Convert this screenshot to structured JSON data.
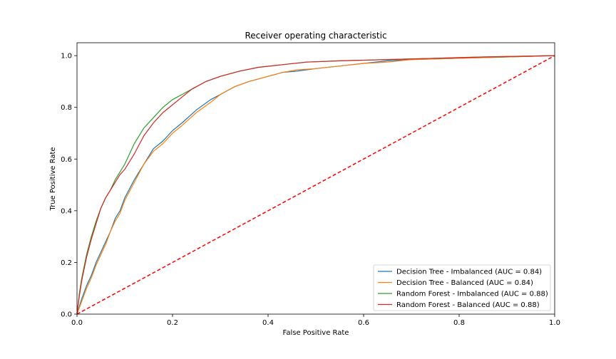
{
  "chart_data": {
    "type": "line",
    "title": "Receiver operating characteristic",
    "xlabel": "False Positive Rate",
    "ylabel": "True Positive Rate",
    "xlim": [
      0,
      1
    ],
    "ylim": [
      0,
      1.05
    ],
    "xticks": [
      "0.0",
      "0.2",
      "0.4",
      "0.6",
      "0.8",
      "1.0"
    ],
    "yticks": [
      "0.0",
      "0.2",
      "0.4",
      "0.6",
      "0.8",
      "1.0"
    ],
    "grid": false,
    "legend_position": "lower-right",
    "series": [
      {
        "name": "Decision Tree - Imbalanced (AUC = 0.84)",
        "color": "#1f77b4",
        "x": [
          0,
          0.01,
          0.02,
          0.03,
          0.04,
          0.05,
          0.06,
          0.07,
          0.08,
          0.09,
          0.1,
          0.12,
          0.14,
          0.16,
          0.18,
          0.2,
          0.22,
          0.25,
          0.28,
          0.3,
          0.33,
          0.36,
          0.4,
          0.43,
          0.46,
          0.5,
          0.55,
          0.6,
          0.65,
          0.7,
          0.8,
          0.9,
          1.0
        ],
        "y": [
          0,
          0.06,
          0.11,
          0.15,
          0.2,
          0.24,
          0.28,
          0.32,
          0.37,
          0.4,
          0.45,
          0.52,
          0.58,
          0.64,
          0.67,
          0.71,
          0.74,
          0.79,
          0.83,
          0.85,
          0.88,
          0.9,
          0.92,
          0.935,
          0.94,
          0.95,
          0.96,
          0.97,
          0.98,
          0.985,
          0.99,
          0.995,
          1.0
        ]
      },
      {
        "name": "Decision Tree - Balanced (AUC = 0.84)",
        "color": "#ff7f0e",
        "x": [
          0,
          0.01,
          0.02,
          0.03,
          0.04,
          0.05,
          0.06,
          0.07,
          0.08,
          0.09,
          0.1,
          0.12,
          0.14,
          0.16,
          0.18,
          0.2,
          0.22,
          0.25,
          0.28,
          0.3,
          0.33,
          0.36,
          0.4,
          0.43,
          0.46,
          0.5,
          0.55,
          0.6,
          0.65,
          0.7,
          0.8,
          0.9,
          1.0
        ],
        "y": [
          0,
          0.05,
          0.1,
          0.14,
          0.19,
          0.23,
          0.27,
          0.32,
          0.36,
          0.39,
          0.44,
          0.51,
          0.58,
          0.63,
          0.66,
          0.7,
          0.73,
          0.78,
          0.82,
          0.85,
          0.88,
          0.9,
          0.92,
          0.935,
          0.945,
          0.95,
          0.96,
          0.97,
          0.975,
          0.985,
          0.99,
          0.995,
          1.0
        ]
      },
      {
        "name": "Random Forest - Imbalanced (AUC = 0.88)",
        "color": "#2ca02c",
        "x": [
          0,
          0.005,
          0.01,
          0.02,
          0.03,
          0.04,
          0.05,
          0.06,
          0.07,
          0.08,
          0.09,
          0.1,
          0.12,
          0.14,
          0.16,
          0.18,
          0.2,
          0.22,
          0.24,
          0.27,
          0.3,
          0.34,
          0.38,
          0.43,
          0.48,
          0.55,
          0.65,
          0.75,
          0.85,
          1.0
        ],
        "y": [
          0,
          0.08,
          0.14,
          0.23,
          0.3,
          0.36,
          0.41,
          0.45,
          0.48,
          0.52,
          0.55,
          0.58,
          0.66,
          0.72,
          0.76,
          0.8,
          0.83,
          0.85,
          0.87,
          0.9,
          0.92,
          0.94,
          0.955,
          0.965,
          0.975,
          0.98,
          0.985,
          0.99,
          0.995,
          1.0
        ]
      },
      {
        "name": "Random Forest - Balanced (AUC = 0.88)",
        "color": "#d62728",
        "x": [
          0,
          0.005,
          0.01,
          0.02,
          0.03,
          0.04,
          0.05,
          0.06,
          0.07,
          0.08,
          0.09,
          0.1,
          0.12,
          0.14,
          0.16,
          0.18,
          0.2,
          0.22,
          0.24,
          0.27,
          0.3,
          0.34,
          0.38,
          0.43,
          0.48,
          0.55,
          0.65,
          0.75,
          0.85,
          1.0
        ],
        "y": [
          0,
          0.07,
          0.13,
          0.22,
          0.29,
          0.35,
          0.41,
          0.45,
          0.48,
          0.51,
          0.54,
          0.56,
          0.62,
          0.69,
          0.74,
          0.78,
          0.81,
          0.84,
          0.87,
          0.9,
          0.92,
          0.94,
          0.955,
          0.965,
          0.975,
          0.98,
          0.985,
          0.99,
          0.995,
          1.0
        ]
      }
    ],
    "reference_line": {
      "color": "#ff0000",
      "style": "dashed",
      "x": [
        0,
        1
      ],
      "y": [
        0,
        1
      ]
    }
  }
}
